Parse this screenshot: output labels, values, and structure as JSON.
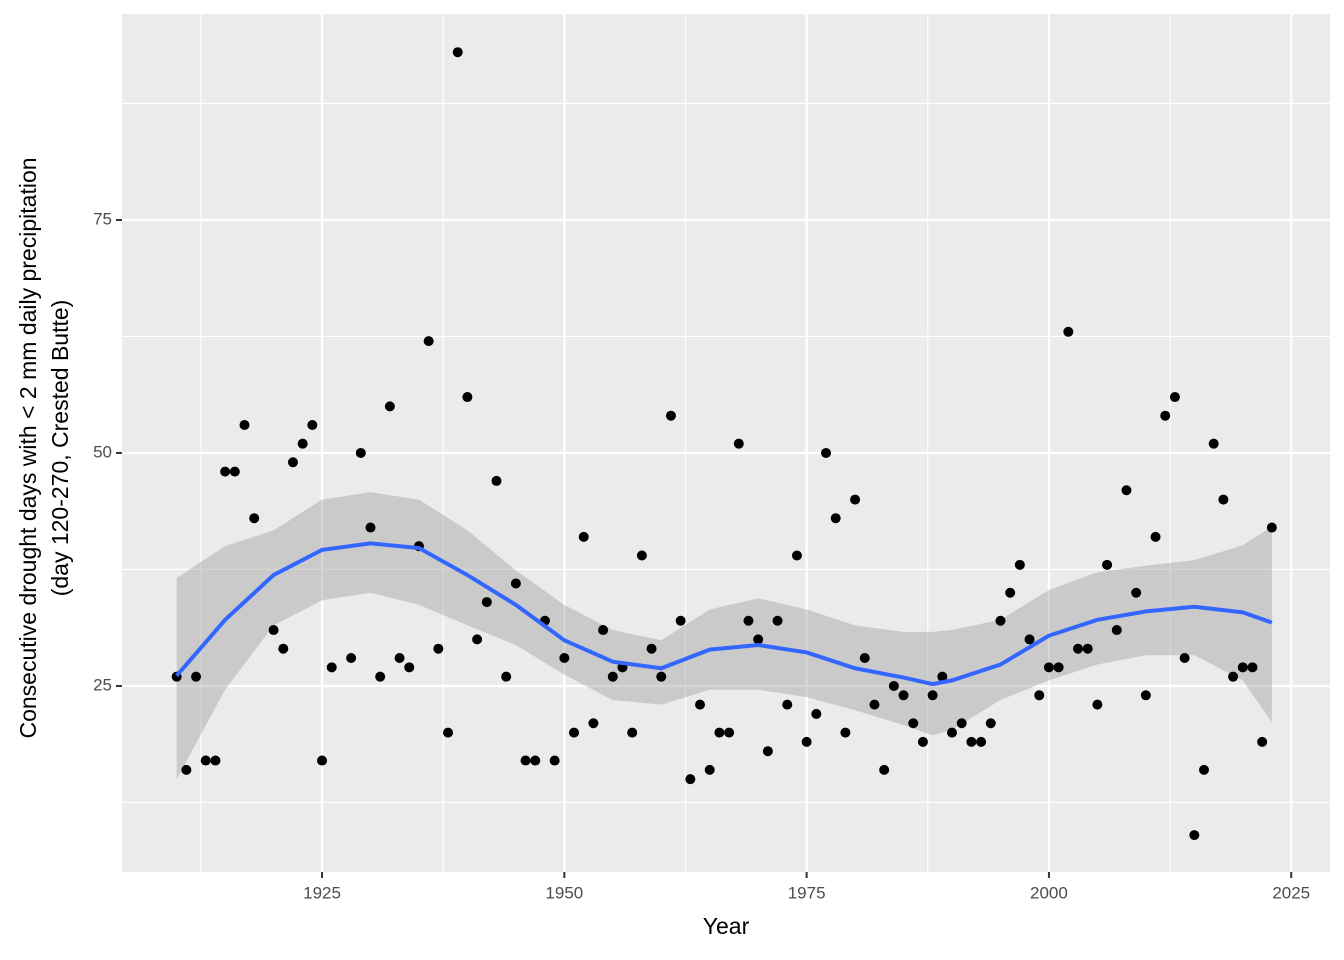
{
  "chart_data": {
    "type": "scatter",
    "xlabel": "Year",
    "ylabel": [
      "Consecutive drought days with < 2 mm daily precipitation",
      "(day 120-270, Crested Butte)"
    ],
    "x": [
      1910,
      1911,
      1912,
      1913,
      1914,
      1915,
      1916,
      1917,
      1918,
      1920,
      1921,
      1922,
      1923,
      1924,
      1925,
      1926,
      1928,
      1929,
      1930,
      1931,
      1932,
      1933,
      1934,
      1935,
      1936,
      1937,
      1938,
      1939,
      1940,
      1941,
      1942,
      1943,
      1944,
      1945,
      1946,
      1947,
      1948,
      1949,
      1950,
      1951,
      1952,
      1953,
      1954,
      1955,
      1956,
      1957,
      1958,
      1959,
      1960,
      1961,
      1962,
      1963,
      1964,
      1965,
      1966,
      1967,
      1968,
      1969,
      1970,
      1971,
      1972,
      1973,
      1974,
      1975,
      1976,
      1977,
      1978,
      1979,
      1980,
      1981,
      1982,
      1983,
      1984,
      1985,
      1986,
      1987,
      1988,
      1989,
      1990,
      1991,
      1992,
      1993,
      1994,
      1995,
      1996,
      1997,
      1998,
      1999,
      2000,
      2001,
      2002,
      2003,
      2004,
      2005,
      2006,
      2007,
      2008,
      2009,
      2010,
      2011,
      2012,
      2013,
      2014,
      2015,
      2016,
      2017,
      2018,
      2019,
      2020,
      2021,
      2022,
      2023
    ],
    "values": [
      26,
      16,
      26,
      17,
      17,
      48,
      48,
      53,
      43,
      31,
      29,
      49,
      51,
      53,
      17,
      27,
      28,
      50,
      42,
      26,
      55,
      28,
      27,
      40,
      62,
      29,
      20,
      93,
      56,
      30,
      34,
      47,
      26,
      36,
      17,
      17,
      32,
      17,
      28,
      20,
      41,
      21,
      31,
      26,
      27,
      20,
      39,
      29,
      26,
      54,
      32,
      15,
      23,
      16,
      20,
      20,
      51,
      32,
      30,
      18,
      32,
      23,
      39,
      19,
      22,
      50,
      43,
      20,
      45,
      28,
      23,
      16,
      25,
      24,
      21,
      19,
      24,
      26,
      20,
      21,
      19,
      19,
      21,
      32,
      35,
      38,
      30,
      24,
      27,
      27,
      63,
      29,
      29,
      23,
      38,
      31,
      46,
      35,
      24,
      41,
      54,
      56,
      28,
      9,
      16,
      51,
      45,
      26,
      27,
      27,
      19,
      42
    ],
    "point_color": "#000000",
    "smooth": {
      "x": [
        1910,
        1915,
        1920,
        1925,
        1930,
        1935,
        1940,
        1945,
        1950,
        1955,
        1960,
        1965,
        1970,
        1975,
        1980,
        1985,
        1988,
        1990,
        1995,
        2000,
        2005,
        2010,
        2015,
        2020,
        2023
      ],
      "values": [
        26.1,
        32.1,
        36.9,
        39.6,
        40.3,
        39.8,
        36.9,
        33.7,
        29.9,
        27.6,
        26.9,
        28.9,
        29.4,
        28.6,
        26.9,
        25.9,
        25.2,
        25.6,
        27.3,
        30.4,
        32.1,
        33,
        33.5,
        32.9,
        31.8
      ],
      "lower": [
        15,
        24.6,
        31.5,
        34.2,
        35,
        33.7,
        31.5,
        29.4,
        26.2,
        23.5,
        23,
        24.6,
        24.6,
        23.8,
        22.4,
        20.8,
        19.7,
        20.3,
        23.5,
        25.6,
        27.3,
        28.3,
        28.3,
        25.6,
        21.1
      ],
      "upper": [
        36.6,
        40,
        41.7,
        45,
        45.8,
        45,
        41.7,
        37.4,
        33.7,
        31,
        29.9,
        33.2,
        34.4,
        33.2,
        31.5,
        30.8,
        30.8,
        31,
        32.1,
        35.3,
        37.2,
        37.9,
        38.5,
        40.1,
        42.1
      ],
      "color": "#3366FF",
      "band_color": "#999999"
    },
    "xlim": [
      1904.36,
      2029.0
    ],
    "ylim": [
      5.04,
      97.1
    ],
    "xticks": [
      1925,
      1950,
      1975,
      2000,
      2025
    ],
    "yticks": [
      25,
      50,
      75
    ],
    "xminor": [
      1912.5,
      1937.5,
      1962.5,
      1987.5,
      2012.5
    ],
    "yminor": [
      12.5,
      37.5,
      62.5,
      87.5
    ],
    "grid": true,
    "panel_color": "#EBEBEB"
  }
}
